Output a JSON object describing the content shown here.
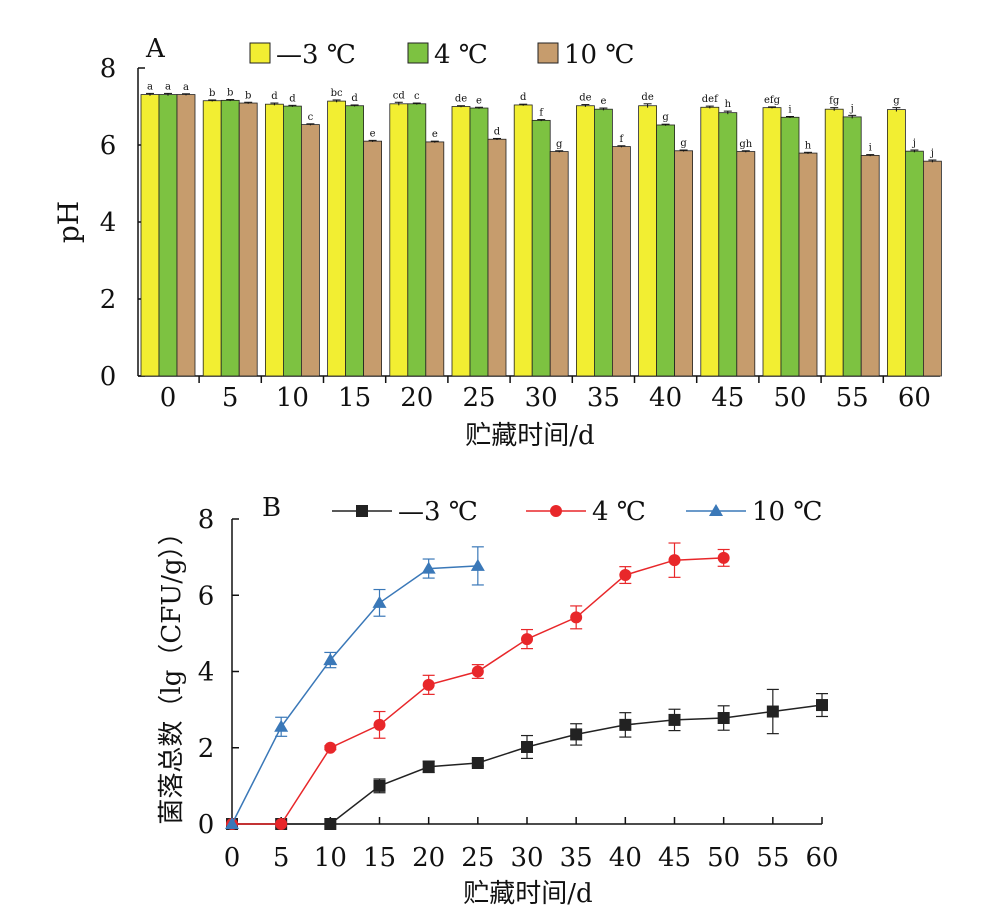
{
  "chart_data": [
    {
      "panel": "A",
      "type": "bar",
      "ylabel": "pH",
      "xlabel": "贮藏时间/d",
      "ylim": [
        0,
        8
      ],
      "yticks": [
        "0",
        "2",
        "4",
        "6",
        "8"
      ],
      "categories": [
        "0",
        "5",
        "10",
        "15",
        "20",
        "25",
        "30",
        "35",
        "40",
        "45",
        "50",
        "55",
        "60"
      ],
      "legend_position": "top",
      "series": [
        {
          "name": "—3 ℃",
          "color": "#f2ee32",
          "values": [
            7.31,
            7.15,
            7.06,
            7.14,
            7.07,
            7.0,
            7.04,
            7.02,
            7.02,
            6.98,
            6.97,
            6.93,
            6.92
          ],
          "errors": [
            0.03,
            0.02,
            0.03,
            0.03,
            0.04,
            0.02,
            0.02,
            0.03,
            0.05,
            0.03,
            0.02,
            0.04,
            0.05
          ],
          "labels": [
            "a",
            "b",
            "d",
            "bc",
            "cd",
            "de",
            "d",
            "de",
            "de",
            "def",
            "efg",
            "fg",
            "g"
          ]
        },
        {
          "name": "4 ℃",
          "color": "#7dc241",
          "values": [
            7.31,
            7.16,
            7.01,
            7.02,
            7.07,
            6.96,
            6.64,
            6.93,
            6.52,
            6.84,
            6.72,
            6.73,
            5.84
          ],
          "errors": [
            0.03,
            0.02,
            0.02,
            0.02,
            0.02,
            0.02,
            0.02,
            0.03,
            0.02,
            0.04,
            0.02,
            0.04,
            0.03
          ],
          "labels": [
            "a",
            "b",
            "d",
            "d",
            "c",
            "e",
            "f",
            "e",
            "g",
            "h",
            "i",
            "j",
            "j"
          ]
        },
        {
          "name": "10 ℃",
          "color": "#c69c6d",
          "values": [
            7.31,
            7.09,
            6.53,
            6.1,
            6.08,
            6.15,
            5.83,
            5.96,
            5.85,
            5.83,
            5.79,
            5.73,
            5.58
          ],
          "errors": [
            0.02,
            0.02,
            0.02,
            0.02,
            0.02,
            0.02,
            0.02,
            0.02,
            0.02,
            0.02,
            0.02,
            0.02,
            0.03
          ],
          "labels": [
            "a",
            "b",
            "c",
            "e",
            "e",
            "d",
            "g",
            "f",
            "g",
            "gh",
            "h",
            "i",
            "j"
          ]
        }
      ]
    },
    {
      "panel": "B",
      "type": "line",
      "ylabel": "菌落总数（lg（CFU/g））",
      "xlabel": "贮藏时间/d",
      "xlim": [
        0,
        60
      ],
      "ylim": [
        0,
        8
      ],
      "xticks": [
        0,
        5,
        10,
        15,
        20,
        25,
        30,
        35,
        40,
        45,
        50,
        55,
        60
      ],
      "yticks": [
        0,
        2,
        4,
        6,
        8
      ],
      "legend_position": "top",
      "series": [
        {
          "name": "—3 ℃",
          "color": "#222222",
          "marker": "square",
          "x": [
            0,
            5,
            10,
            15,
            20,
            25,
            30,
            35,
            40,
            45,
            50,
            55,
            60
          ],
          "y": [
            0.0,
            0.0,
            0.0,
            1.0,
            1.5,
            1.6,
            2.02,
            2.35,
            2.6,
            2.73,
            2.78,
            2.95,
            3.12
          ],
          "errors": [
            0.0,
            0.0,
            0.0,
            0.18,
            0.15,
            0.08,
            0.3,
            0.28,
            0.32,
            0.28,
            0.32,
            0.58,
            0.3
          ]
        },
        {
          "name": "4 ℃",
          "color": "#e8272a",
          "marker": "circle",
          "x": [
            0,
            5,
            10,
            15,
            20,
            25,
            30,
            35,
            40,
            45,
            50
          ],
          "y": [
            0.0,
            0.0,
            2.0,
            2.6,
            3.65,
            4.0,
            4.85,
            5.42,
            6.53,
            6.92,
            6.98
          ],
          "errors": [
            0.0,
            0.0,
            0.05,
            0.35,
            0.25,
            0.18,
            0.25,
            0.3,
            0.22,
            0.45,
            0.22
          ]
        },
        {
          "name": "10 ℃",
          "color": "#3a78b8",
          "marker": "triangle",
          "x": [
            0,
            5,
            10,
            15,
            20,
            25
          ],
          "y": [
            0.0,
            2.55,
            4.3,
            5.8,
            6.7,
            6.77
          ],
          "errors": [
            0.0,
            0.25,
            0.2,
            0.35,
            0.25,
            0.5
          ]
        }
      ]
    }
  ]
}
